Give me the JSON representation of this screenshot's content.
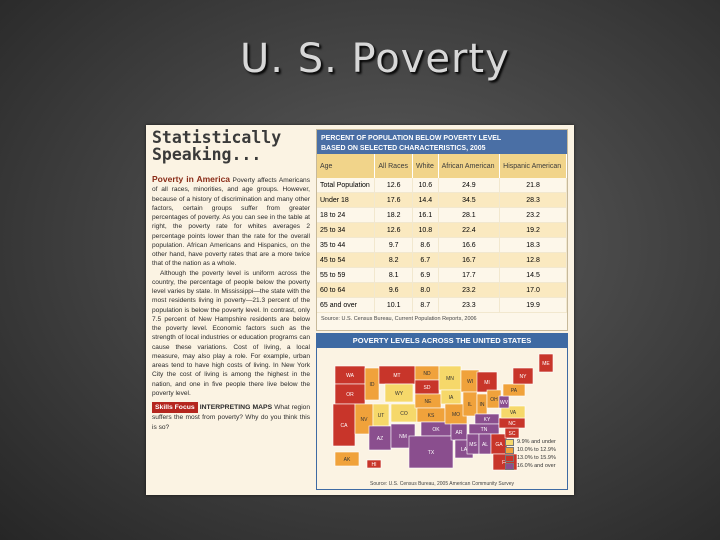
{
  "slide": {
    "title": "U. S. Poverty"
  },
  "article": {
    "header_title": "Statistically Speaking...",
    "section_head": "Poverty in America",
    "paragraph1": "Poverty affects Americans of all races, minorities, and age groups. However, because of a history of discrimination and many other factors, certain groups suffer from greater percentages of poverty. As you can see in the table at right, the poverty rate for whites averages 2 percentage points lower than the rate for the overall population. African Americans and Hispanics, on the other hand, have poverty rates that are a more twice that of the nation as a whole.",
    "paragraph2": "Although the poverty level is uniform across the country, the percentage of people below the poverty level varies by state. In Mississippi—the state with the most residents living in poverty—21.3 percent of the population is below the poverty level. In contrast, only 7.5 percent of New Hampshire residents are below the poverty level. Economic factors such as the strength of local industries or education programs can cause these variations. Cost of living, a local measure, may also play a role. For example, urban areas tend to have high costs of living. In New York City the cost of living is among the highest in the nation, and one in five people there live below the poverty level.",
    "skills_badge": "Skills Focus",
    "skills_head": "INTERPRETING MAPS",
    "skills_text": "What region suffers the most from poverty? Why do you think this is so?"
  },
  "poverty_table": {
    "title_line1": "PERCENT OF POPULATION BELOW POVERTY LEVEL",
    "title_line2": "BASED ON SELECTED CHARACTERISTICS, 2005",
    "columns": [
      "Age",
      "All Races",
      "White",
      "African American",
      "Hispanic American"
    ],
    "rows": [
      [
        "Total Population",
        "12.6",
        "10.6",
        "24.9",
        "21.8"
      ],
      [
        "Under 18",
        "17.6",
        "14.4",
        "34.5",
        "28.3"
      ],
      [
        "18 to 24",
        "18.2",
        "16.1",
        "28.1",
        "23.2"
      ],
      [
        "25 to 34",
        "12.6",
        "10.8",
        "22.4",
        "19.2"
      ],
      [
        "35 to 44",
        "9.7",
        "8.6",
        "16.6",
        "18.3"
      ],
      [
        "45 to 54",
        "8.2",
        "6.7",
        "16.7",
        "12.8"
      ],
      [
        "55 to 59",
        "8.1",
        "6.9",
        "17.7",
        "14.5"
      ],
      [
        "60 to 64",
        "9.6",
        "8.0",
        "23.2",
        "17.0"
      ],
      [
        "65 and over",
        "10.1",
        "8.7",
        "23.3",
        "19.9"
      ]
    ],
    "source": "Source: U.S. Census Bureau, Current Population Reports, 2006"
  },
  "poverty_map": {
    "title": "POVERTY LEVELS ACROSS THE UNITED STATES",
    "legend": [
      {
        "label": "9.9% and under",
        "color": "#f6d86a"
      },
      {
        "label": "10.0% to 12.9%",
        "color": "#f0a23b"
      },
      {
        "label": "13.0% to 15.9%",
        "color": "#c8352a"
      },
      {
        "label": "16.0% and over",
        "color": "#8a4e8e"
      }
    ],
    "state_labels": [
      "WA",
      "OR",
      "CA",
      "NV",
      "ID",
      "MT",
      "WY",
      "UT",
      "AZ",
      "CO",
      "NM",
      "ND",
      "SD",
      "NE",
      "KS",
      "OK",
      "TX",
      "MN",
      "IA",
      "MO",
      "AR",
      "LA",
      "WI",
      "IL",
      "MI",
      "IN",
      "OH",
      "KY",
      "TN",
      "MS",
      "AL",
      "GA",
      "FL",
      "SC",
      "NC",
      "VA",
      "WV",
      "PA",
      "NY",
      "ME",
      "AK",
      "HI"
    ],
    "source": "Source: U.S. Census Bureau, 2005 American Community Survey"
  }
}
